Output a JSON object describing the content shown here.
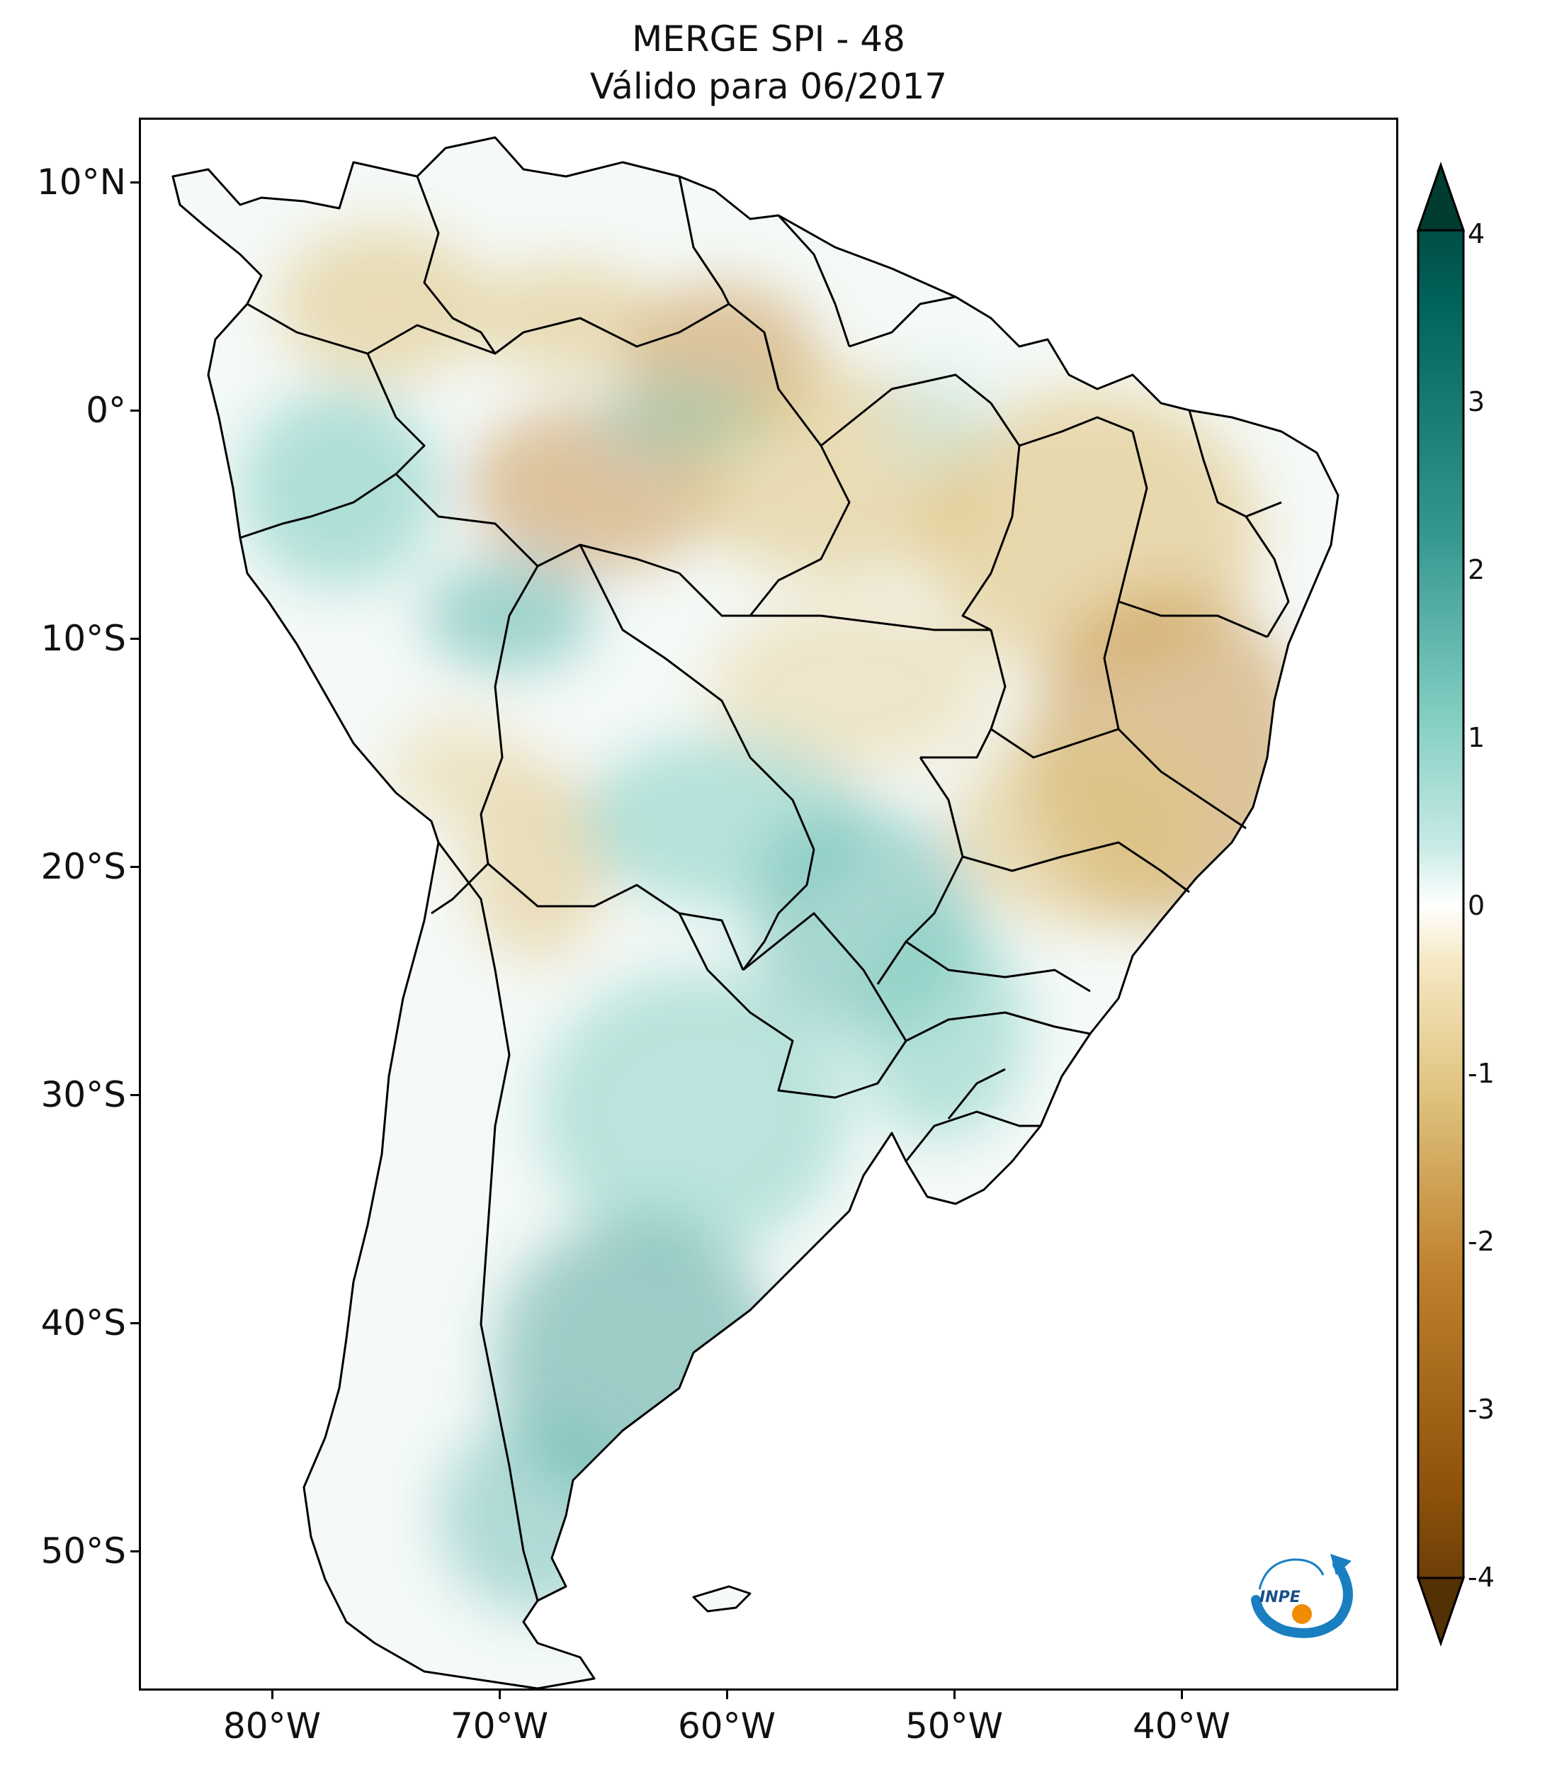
{
  "title": {
    "line1": "MERGE   SPI - 48",
    "line2": "Válido para 06/2017"
  },
  "axes": {
    "lat_ticks": [
      "10°N",
      "0°",
      "10°S",
      "20°S",
      "30°S",
      "40°S",
      "50°S"
    ],
    "lon_ticks": [
      "80°W",
      "70°W",
      "60°W",
      "50°W",
      "40°W"
    ]
  },
  "colorbar": {
    "labels": [
      "4",
      "3",
      "2",
      "1",
      "0",
      "-1",
      "-2",
      "-3",
      "-4"
    ],
    "colors": {
      "dry_strong": "#543005",
      "dry_mid": "#bf812d",
      "dry_light": "#f6e8c3",
      "neutral": "#ffffff",
      "wet_light": "#c7eae5",
      "wet_mid": "#35978f",
      "wet_strong": "#003c30"
    }
  },
  "logo": {
    "text": "INPE"
  },
  "map": {
    "land_color": "#f5faf8",
    "border_color": "#000000"
  }
}
